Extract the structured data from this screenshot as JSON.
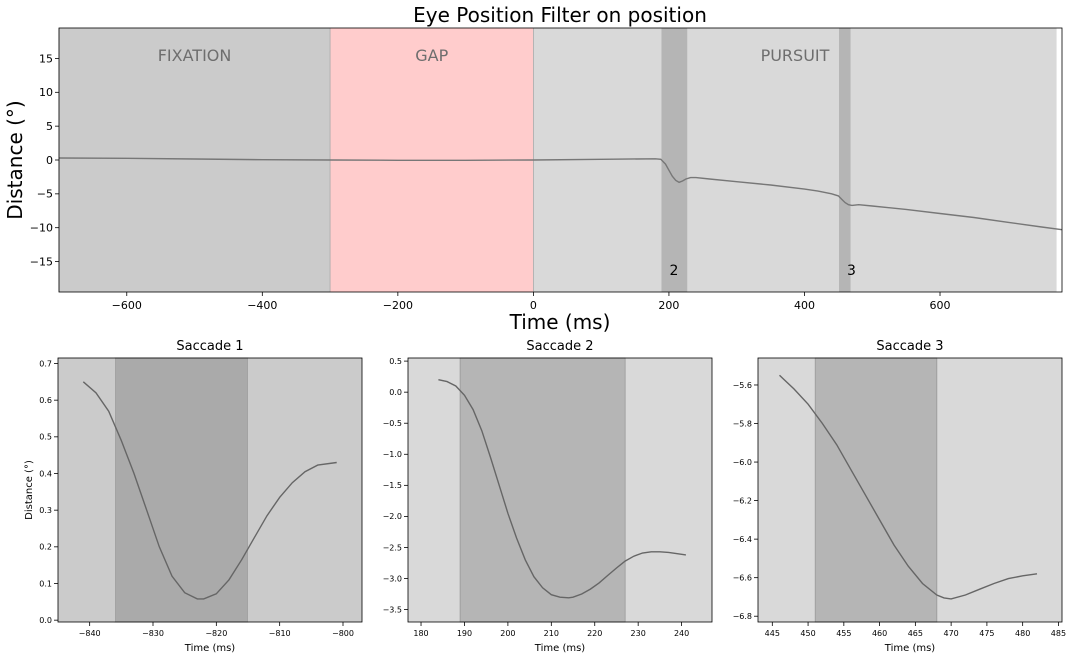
{
  "chart_data": [
    {
      "id": "main",
      "type": "line",
      "title": "Eye Position Filter on position",
      "xlabel": "Time (ms)",
      "ylabel": "Distance (°)",
      "xlim": [
        -700,
        780
      ],
      "ylim": [
        -19.5,
        19.5
      ],
      "xticks": [
        -600,
        -400,
        -200,
        0,
        200,
        400,
        600
      ],
      "yticks": [
        -15,
        -10,
        -5,
        0,
        5,
        10,
        15
      ],
      "regions": [
        {
          "start": -700,
          "end": -300,
          "label": "FIXATION",
          "color": "#cbcbcb"
        },
        {
          "start": -300,
          "end": 0,
          "label": "GAP",
          "color": "#ffcccc"
        },
        {
          "start": 0,
          "end": 772,
          "label": "PURSUIT",
          "color": "#d9d9d9"
        }
      ],
      "saccades": [
        {
          "start": 189,
          "end": 227,
          "label": "2"
        },
        {
          "start": 451,
          "end": 468,
          "label": "3"
        }
      ],
      "series": [
        {
          "color": "#777777",
          "x": [
            -700,
            -600,
            -500,
            -400,
            -300,
            -200,
            -100,
            0,
            100,
            180,
            188,
            195,
            200,
            205,
            210,
            215,
            220,
            225,
            232,
            240,
            260,
            300,
            350,
            400,
            420,
            440,
            450,
            455,
            460,
            465,
            470,
            480,
            500,
            550,
            600,
            650,
            700,
            750,
            780
          ],
          "y": [
            0.3,
            0.25,
            0.15,
            0.05,
            0.0,
            -0.05,
            -0.05,
            0.0,
            0.1,
            0.18,
            0.1,
            -0.6,
            -1.5,
            -2.4,
            -3.0,
            -3.3,
            -3.1,
            -2.8,
            -2.6,
            -2.6,
            -2.8,
            -3.2,
            -3.7,
            -4.3,
            -4.6,
            -5.0,
            -5.3,
            -5.8,
            -6.3,
            -6.6,
            -6.7,
            -6.6,
            -6.8,
            -7.3,
            -7.9,
            -8.5,
            -9.2,
            -9.9,
            -10.3
          ]
        }
      ]
    },
    {
      "id": "s1",
      "type": "line",
      "title": "Saccade 1",
      "xlabel": "Time (ms)",
      "ylabel": "Distance (°)",
      "xlim": [
        -845,
        -797
      ],
      "ylim": [
        -0.005,
        0.715
      ],
      "xticks": [
        -840,
        -830,
        -820,
        -810,
        -800
      ],
      "yticks": [
        0.0,
        0.1,
        0.2,
        0.3,
        0.4,
        0.5,
        0.6,
        0.7
      ],
      "xtick_labels": [
        "−840",
        "−830",
        "−820",
        "−810",
        "−800"
      ],
      "ytick_labels": [
        "0.0",
        "0.1",
        "0.2",
        "0.3",
        "0.4",
        "0.5",
        "0.6",
        "0.7"
      ],
      "shaded": [
        -836,
        -815
      ],
      "series": [
        {
          "color": "#666666",
          "x": [
            -841,
            -839,
            -837,
            -835,
            -833,
            -831,
            -829,
            -827,
            -825,
            -823,
            -822,
            -820,
            -818,
            -816,
            -814,
            -812,
            -810,
            -808,
            -806,
            -804,
            -801
          ],
          "y": [
            0.65,
            0.62,
            0.57,
            0.49,
            0.4,
            0.3,
            0.2,
            0.12,
            0.075,
            0.058,
            0.058,
            0.072,
            0.11,
            0.165,
            0.225,
            0.285,
            0.335,
            0.375,
            0.405,
            0.423,
            0.43
          ]
        }
      ]
    },
    {
      "id": "s2",
      "type": "line",
      "title": "Saccade 2",
      "xlabel": "Time (ms)",
      "ylabel": "",
      "xlim": [
        177,
        247
      ],
      "ylim": [
        -3.7,
        0.55
      ],
      "xticks": [
        180,
        190,
        200,
        210,
        220,
        230,
        240
      ],
      "yticks": [
        -3.5,
        -3.0,
        -2.5,
        -2.0,
        -1.5,
        -1.0,
        -0.5,
        0.0,
        0.5
      ],
      "xtick_labels": [
        "180",
        "190",
        "200",
        "210",
        "220",
        "230",
        "240"
      ],
      "ytick_labels": [
        "−3.5",
        "−3.0",
        "−2.5",
        "−2.0",
        "−1.5",
        "−1.0",
        "−0.5",
        "0.0",
        "0.5"
      ],
      "shaded": [
        189,
        227
      ],
      "series": [
        {
          "color": "#666666",
          "x": [
            184,
            186,
            188,
            190,
            192,
            194,
            196,
            198,
            200,
            202,
            204,
            206,
            208,
            210,
            212,
            214,
            215,
            217,
            219,
            221,
            223,
            225,
            227,
            229,
            231,
            233,
            235,
            237,
            239,
            241
          ],
          "y": [
            0.2,
            0.17,
            0.1,
            -0.05,
            -0.28,
            -0.62,
            -1.05,
            -1.5,
            -1.95,
            -2.35,
            -2.7,
            -2.97,
            -3.15,
            -3.26,
            -3.3,
            -3.31,
            -3.3,
            -3.25,
            -3.17,
            -3.07,
            -2.95,
            -2.83,
            -2.72,
            -2.64,
            -2.59,
            -2.57,
            -2.57,
            -2.58,
            -2.6,
            -2.62
          ]
        }
      ]
    },
    {
      "id": "s3",
      "type": "line",
      "title": "Saccade 3",
      "xlabel": "Time (ms)",
      "ylabel": "",
      "xlim": [
        443,
        485.5
      ],
      "ylim": [
        -6.83,
        -5.46
      ],
      "xticks": [
        445,
        450,
        455,
        460,
        465,
        470,
        475,
        480,
        485
      ],
      "yticks": [
        -6.8,
        -6.6,
        -6.4,
        -6.2,
        -6.0,
        -5.8,
        -5.6
      ],
      "xtick_labels": [
        "445",
        "450",
        "455",
        "460",
        "465",
        "470",
        "475",
        "480",
        "485"
      ],
      "ytick_labels": [
        "−6.8",
        "−6.6",
        "−6.4",
        "−6.2",
        "−6.0",
        "−5.8",
        "−5.6"
      ],
      "shaded": [
        451,
        468
      ],
      "series": [
        {
          "color": "#666666",
          "x": [
            446,
            448,
            450,
            452,
            454,
            456,
            458,
            460,
            462,
            464,
            466,
            468,
            469,
            470,
            472,
            474,
            476,
            478,
            480,
            482
          ],
          "y": [
            -5.55,
            -5.62,
            -5.7,
            -5.8,
            -5.91,
            -6.04,
            -6.17,
            -6.3,
            -6.43,
            -6.54,
            -6.63,
            -6.69,
            -6.705,
            -6.71,
            -6.69,
            -6.66,
            -6.63,
            -6.605,
            -6.59,
            -6.58
          ]
        }
      ]
    }
  ]
}
